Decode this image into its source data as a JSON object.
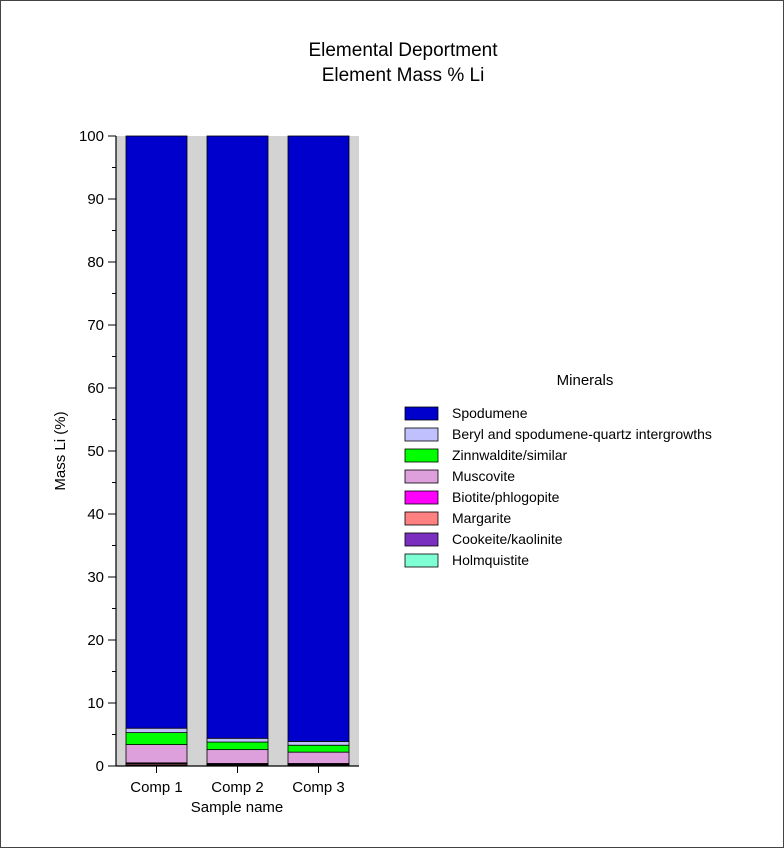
{
  "chart_data": {
    "type": "bar",
    "stacked": true,
    "title": "Elemental Deportment",
    "subtitle": "Element Mass % Li",
    "xlabel": "Sample name",
    "ylabel": "Mass Li (%)",
    "ylim": [
      0,
      100
    ],
    "yticks": [
      "0",
      "10",
      "20",
      "30",
      "40",
      "50",
      "60",
      "70",
      "80",
      "90",
      "100"
    ],
    "categories": [
      "Comp 1",
      "Comp 2",
      "Comp 3"
    ],
    "legend_title": "Minerals",
    "legend_position": "right",
    "plot_background": "#d3d3d3",
    "series": [
      {
        "name": "Holmquistite",
        "color": "#7fffd4",
        "values": [
          0.1,
          0.1,
          0.1
        ]
      },
      {
        "name": "Cookeite/kaolinite",
        "color": "#7b2fbe",
        "values": [
          0.1,
          0.1,
          0.1
        ]
      },
      {
        "name": "Margarite",
        "color": "#ff8080",
        "values": [
          0.2,
          0.1,
          0.1
        ]
      },
      {
        "name": "Biotite/phlogopite",
        "color": "#ff00ff",
        "values": [
          0.1,
          0.1,
          0.1
        ]
      },
      {
        "name": "Muscovite",
        "color": "#dda0dd",
        "values": [
          2.9,
          2.2,
          1.8
        ]
      },
      {
        "name": "Zinnwaldite/similar",
        "color": "#00ff00",
        "values": [
          1.9,
          1.2,
          1.1
        ]
      },
      {
        "name": "Beryl and spodumene-quartz intergrowths",
        "color": "#c0c0ff",
        "values": [
          0.7,
          0.6,
          0.6
        ]
      },
      {
        "name": "Spodumene",
        "color": "#0000cd",
        "values": [
          94.0,
          95.6,
          96.1
        ]
      }
    ],
    "legend_order": [
      "Spodumene",
      "Beryl and spodumene-quartz intergrowths",
      "Zinnwaldite/similar",
      "Muscovite",
      "Biotite/phlogopite",
      "Margarite",
      "Cookeite/kaolinite",
      "Holmquistite"
    ]
  }
}
